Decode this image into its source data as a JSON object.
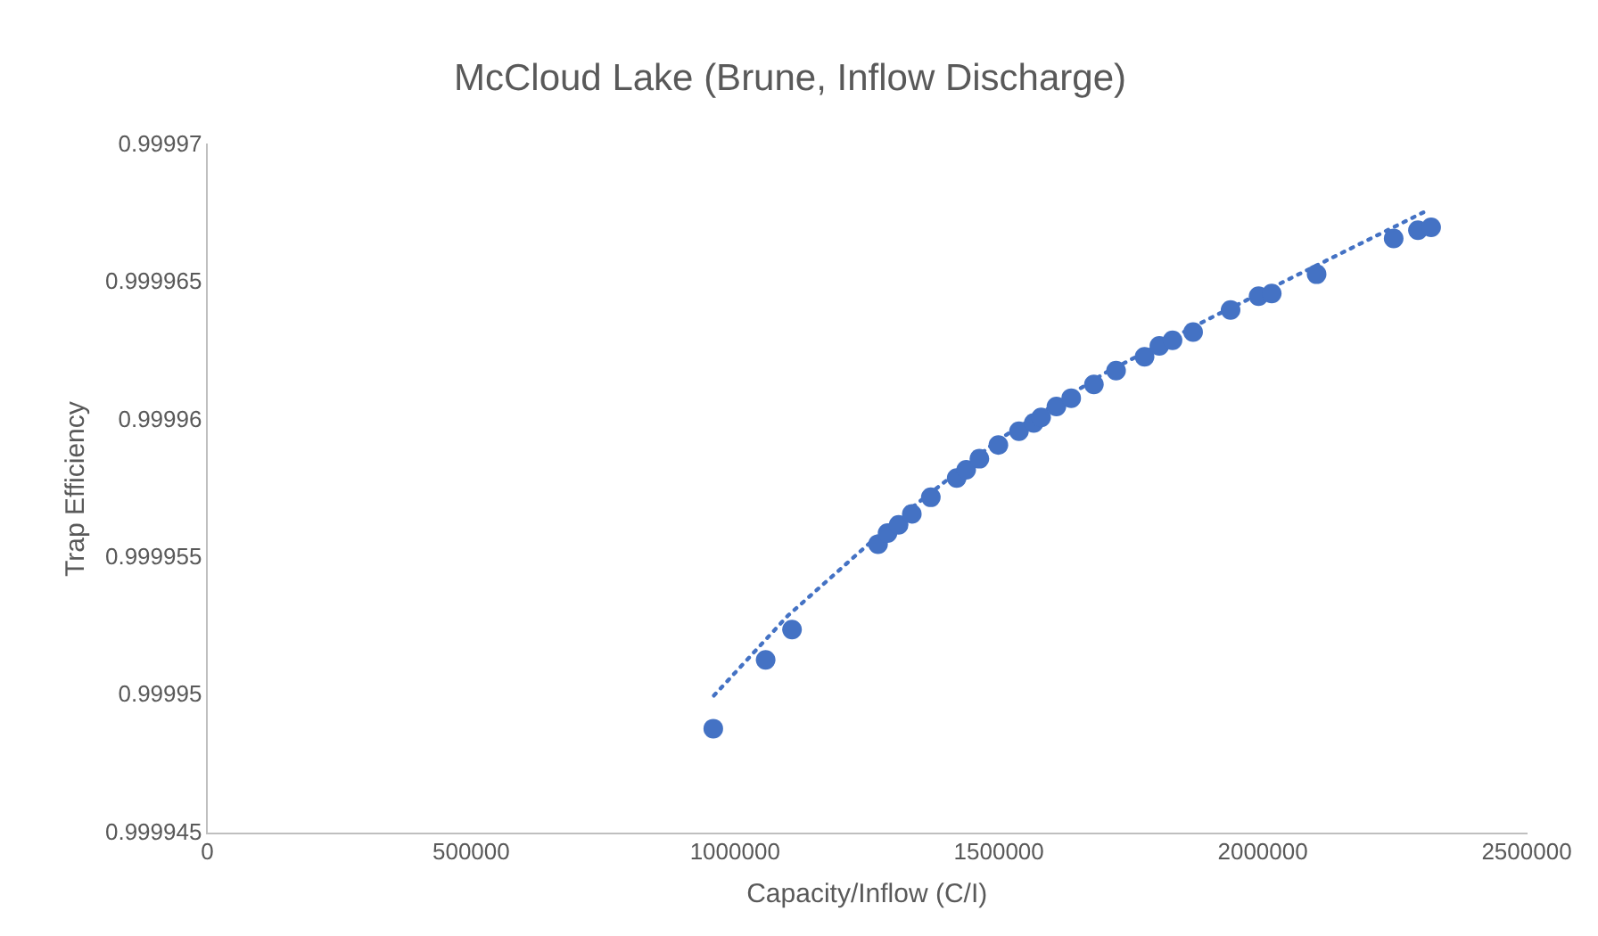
{
  "chart_data": {
    "type": "scatter",
    "title": "McCloud Lake (Brune, Inflow Discharge)",
    "xlabel": "Capacity/Inflow (C/I)",
    "ylabel": "Trap Efficiency",
    "xlim": [
      0,
      2500000
    ],
    "xticks": [
      0,
      500000,
      1000000,
      1500000,
      2000000,
      2500000
    ],
    "ylim": [
      0.999945,
      0.99997
    ],
    "yticks": [
      0.999945,
      0.99995,
      0.999955,
      0.99996,
      0.999965,
      0.99997
    ],
    "grid": false,
    "legend": false,
    "marker": "circle",
    "series": [
      {
        "color": "#4472c4",
        "x": [
          958800,
          1058000,
          1108000,
          1271000,
          1289000,
          1310000,
          1335000,
          1371000,
          1420000,
          1438000,
          1463000,
          1499000,
          1538000,
          1566000,
          1580000,
          1609000,
          1637000,
          1680000,
          1722000,
          1776000,
          1804000,
          1829000,
          1868000,
          1939000,
          1992000,
          2017000,
          2102000,
          2248000,
          2294000,
          2319000
        ],
        "values": [
          0.9999488,
          0.9999513,
          0.9999524,
          0.9999555,
          0.9999559,
          0.9999562,
          0.9999566,
          0.9999572,
          0.9999579,
          0.9999582,
          0.9999586,
          0.9999591,
          0.9999596,
          0.9999599,
          0.9999601,
          0.9999605,
          0.9999608,
          0.9999613,
          0.9999618,
          0.9999623,
          0.9999627,
          0.9999629,
          0.9999632,
          0.999964,
          0.9999645,
          0.9999646,
          0.9999653,
          0.9999666,
          0.9999669,
          0.999967
        ]
      },
      {
        "type": "line",
        "color": "#4472c4",
        "line_style": "dotted",
        "marker": "none",
        "x": [
          960000,
          1100000,
          1300000,
          1500000,
          1700000,
          1900000,
          2100000,
          2310000
        ],
        "values": [
          0.99995,
          0.9999529,
          0.9999563,
          0.9999593,
          0.9999617,
          0.9999637,
          0.9999656,
          0.9999676
        ]
      }
    ]
  }
}
